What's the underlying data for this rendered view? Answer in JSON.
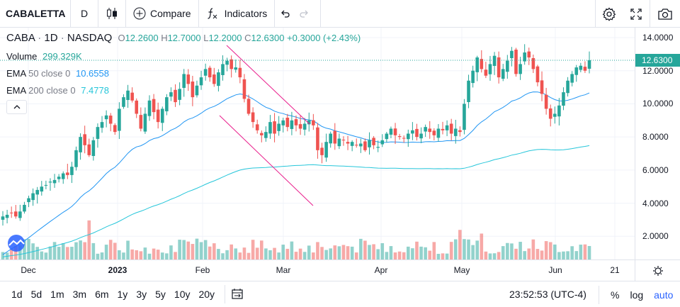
{
  "toolbar": {
    "symbol": "CABALETTA",
    "interval": "D",
    "compare_label": "Compare",
    "indicators_label": "Indicators"
  },
  "legend": {
    "ticker": "CABA",
    "interval": "1D",
    "exchange": "NASDAQ",
    "open_key": "O",
    "open": "12.2600",
    "high_key": "H",
    "high": "12.7000",
    "low_key": "L",
    "low": "12.2000",
    "close_key": "C",
    "close": "12.6300",
    "change": "+0.3000 (+2.43%)",
    "volume_label": "Volume",
    "volume": "299.329K",
    "ema50_label": "EMA",
    "ema50_params": "50 close 0",
    "ema50_value": "10.6558",
    "ema200_label": "EMA",
    "ema200_params": "200 close 0",
    "ema200_value": "7.4778"
  },
  "price_axis": {
    "labels": [
      "14.0000",
      "12.0000",
      "10.0000",
      "8.0000",
      "6.0000",
      "4.0000",
      "2.0000"
    ],
    "last_price": "12.6300"
  },
  "time_axis": {
    "labels": [
      {
        "text": "Dec",
        "bold": false
      },
      {
        "text": "2023",
        "bold": true
      },
      {
        "text": "Feb",
        "bold": false
      },
      {
        "text": "Mar",
        "bold": false
      },
      {
        "text": "Apr",
        "bold": false
      },
      {
        "text": "May",
        "bold": false
      },
      {
        "text": "Jun",
        "bold": false
      },
      {
        "text": "21",
        "bold": false
      }
    ]
  },
  "bottom_bar": {
    "ranges": [
      "1d",
      "5d",
      "1m",
      "3m",
      "6m",
      "1y",
      "3y",
      "5y",
      "10y",
      "20y"
    ],
    "clock": "23:52:53 (UTC-4)",
    "percent_label": "%",
    "log_label": "log",
    "auto_label": "auto"
  },
  "colors": {
    "up": "#26a69a",
    "down": "#ef5350",
    "ema50": "#2196f3",
    "ema200": "#26c6da",
    "trendline": "#e91e8c"
  },
  "chart_data": {
    "type": "candlestick",
    "title": "CABA 1D NASDAQ",
    "price_range": [
      0.6,
      14.6
    ],
    "candles_close": [
      3.2,
      3.3,
      3.4,
      3.2,
      3.5,
      3.9,
      4.3,
      4.6,
      4.8,
      5.0,
      5.1,
      5.3,
      5.4,
      5.6,
      5.8,
      5.7,
      6.2,
      7.2,
      8.0,
      7.5,
      6.9,
      7.8,
      8.6,
      8.9,
      9.3,
      8.8,
      8.3,
      9.7,
      10.4,
      10.8,
      10.2,
      9.4,
      8.5,
      9.4,
      10.2,
      9.5,
      8.9,
      9.7,
      10.4,
      10.7,
      10.1,
      10.9,
      11.8,
      11.2,
      10.4,
      11.1,
      11.6,
      12.1,
      11.6,
      11.2,
      11.9,
      12.4,
      12.6,
      12.1,
      12.2,
      11.6,
      10.3,
      9.4,
      8.9,
      8.4,
      8.1,
      8.3,
      8.9,
      8.2,
      8.8,
      9.0,
      8.6,
      9.0,
      8.7,
      8.5,
      8.8,
      9.0,
      8.7,
      7.2,
      6.9,
      7.7,
      8.2,
      7.6,
      7.9,
      7.8,
      7.6,
      7.7,
      7.5,
      7.6,
      7.2,
      7.8,
      7.5,
      7.4,
      7.8,
      8.2,
      8.5,
      8.1,
      8.0,
      7.9,
      8.2,
      8.4,
      8.0,
      8.2,
      8.6,
      8.3,
      8.1,
      8.5,
      8.4,
      8.7,
      8.2,
      8.5,
      8.3,
      10.0,
      11.4,
      12.0,
      12.8,
      12.1,
      11.7,
      12.4,
      12.9,
      11.6,
      12.1,
      12.6,
      13.2,
      11.8,
      12.4,
      13.1,
      12.8,
      12.1,
      11.3,
      10.6,
      9.7,
      9.1,
      9.4,
      9.9,
      10.7,
      11.4,
      11.8,
      12.2,
      12.3,
      12.0,
      12.63
    ],
    "ema50_last": 10.6558,
    "ema200_last": 7.4778,
    "volume_last": "299.329K"
  }
}
